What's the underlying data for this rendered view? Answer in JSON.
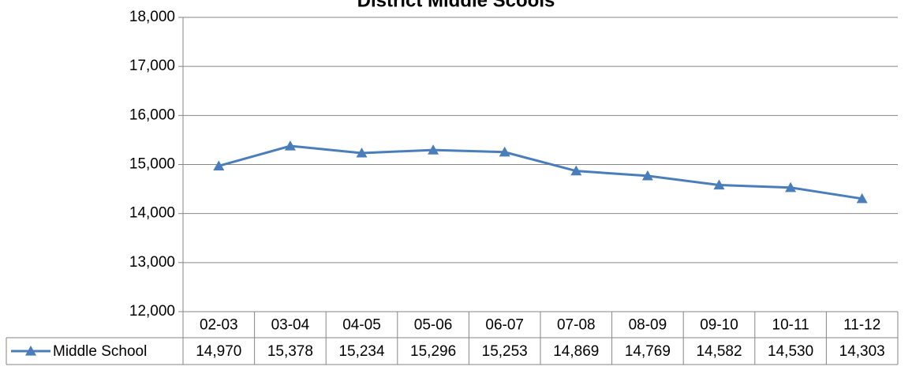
{
  "chart_data": {
    "type": "line",
    "title": "District Middle Scools",
    "categories": [
      "02-03",
      "03-04",
      "04-05",
      "05-06",
      "06-07",
      "07-08",
      "08-09",
      "09-10",
      "10-11",
      "11-12"
    ],
    "series": [
      {
        "name": "Middle School",
        "color": "#4a7ebb",
        "values": [
          14970,
          15378,
          15234,
          15296,
          15253,
          14869,
          14769,
          14582,
          14530,
          14303
        ],
        "value_labels": [
          "14,970",
          "15,378",
          "15,234",
          "15,296",
          "15,253",
          "14,869",
          "14,769",
          "14,582",
          "14,530",
          "14,303"
        ]
      }
    ],
    "ylim": [
      12000,
      18000
    ],
    "yticks": [
      {
        "value": 12000,
        "label": "12,000"
      },
      {
        "value": 13000,
        "label": "13,000"
      },
      {
        "value": 14000,
        "label": "14,000"
      },
      {
        "value": 15000,
        "label": "15,000"
      },
      {
        "value": 16000,
        "label": "16,000"
      },
      {
        "value": 17000,
        "label": "17,000"
      },
      {
        "value": 18000,
        "label": "18,000"
      }
    ],
    "grid": true
  }
}
